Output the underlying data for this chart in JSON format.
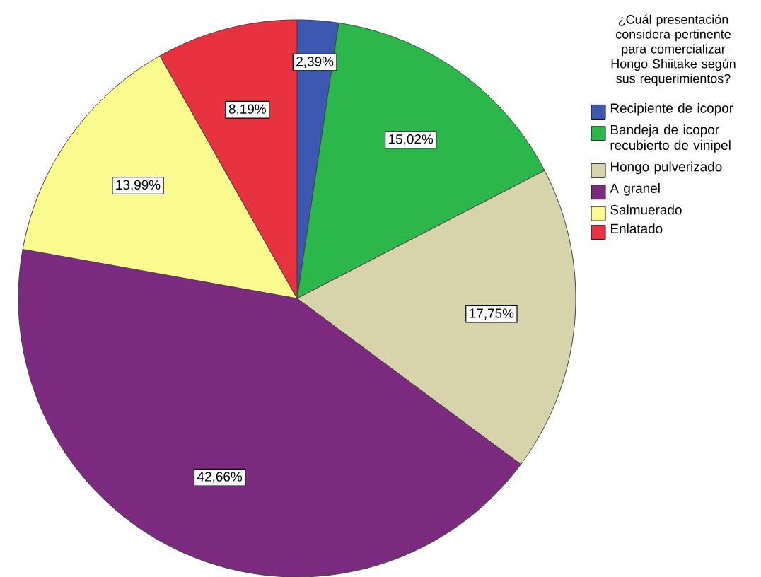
{
  "chart_data": {
    "type": "pie",
    "legend_title": "¿Cuál presentación considera pertinente para comercializar Hongo Shiitake según sus requerimientos?",
    "categories": [
      "Recipiente de icopor",
      "Bandeja de icopor recubierto de vinipel",
      "Hongo pulverizado",
      "A granel",
      "Salmuerado",
      "Enlatado"
    ],
    "values": [
      2.39,
      15.02,
      17.75,
      42.66,
      13.99,
      8.19
    ],
    "value_labels": [
      "2,39%",
      "15,02%",
      "17,75%",
      "42,66%",
      "13,99%",
      "8,19%"
    ],
    "colors": [
      "#3d58b0",
      "#2bb74a",
      "#d7d3aa",
      "#7b2a80",
      "#fbfa8e",
      "#e8323f"
    ],
    "legend": "right"
  }
}
